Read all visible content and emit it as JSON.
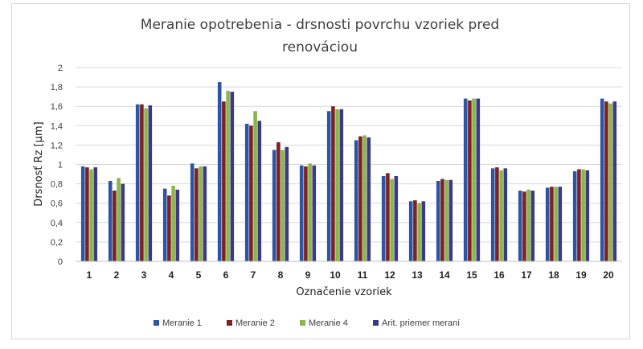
{
  "chart_data": {
    "type": "bar",
    "title_line1": "Meranie opotrebenia - drsnosti povrchu vzoriek pred",
    "title_line2": "renováciou",
    "xlabel": "Označenie vzoriek",
    "ylabel": "Drsnosť Rz [µm]",
    "ylim": [
      0,
      2
    ],
    "yticks": [
      "0",
      "0,2",
      "0,4",
      "0,6",
      "0,8",
      "1",
      "1,2",
      "1,4",
      "1,6",
      "1,8",
      "2"
    ],
    "categories": [
      "1",
      "2",
      "3",
      "4",
      "5",
      "6",
      "7",
      "8",
      "9",
      "10",
      "11",
      "12",
      "13",
      "14",
      "15",
      "16",
      "17",
      "18",
      "19",
      "20"
    ],
    "grid": true,
    "legend_position": "bottom",
    "series": [
      {
        "name": "Meranie 1",
        "color": "#2E55A4",
        "values": [
          0.98,
          0.83,
          1.62,
          0.75,
          1.01,
          1.85,
          1.42,
          1.15,
          0.99,
          1.55,
          1.25,
          0.88,
          0.62,
          0.83,
          1.68,
          0.96,
          0.73,
          0.76,
          0.93,
          1.68
        ]
      },
      {
        "name": "Meranie 2",
        "color": "#7B2224",
        "values": [
          0.97,
          0.73,
          1.62,
          0.68,
          0.96,
          1.65,
          1.4,
          1.23,
          0.98,
          1.6,
          1.29,
          0.91,
          0.63,
          0.85,
          1.66,
          0.97,
          0.72,
          0.77,
          0.95,
          1.65
        ]
      },
      {
        "name": "Meranie 4",
        "color": "#8DB64A",
        "values": [
          0.95,
          0.86,
          1.58,
          0.78,
          0.98,
          1.76,
          1.55,
          1.15,
          1.01,
          1.57,
          1.3,
          0.85,
          0.6,
          0.84,
          1.68,
          0.94,
          0.74,
          0.77,
          0.95,
          1.63
        ]
      },
      {
        "name": "Arit. priemer meraní",
        "color": "#3B3A84",
        "values": [
          0.97,
          0.8,
          1.61,
          0.74,
          0.98,
          1.75,
          1.45,
          1.18,
          0.99,
          1.57,
          1.28,
          0.88,
          0.62,
          0.84,
          1.68,
          0.96,
          0.73,
          0.77,
          0.94,
          1.65
        ]
      }
    ]
  }
}
